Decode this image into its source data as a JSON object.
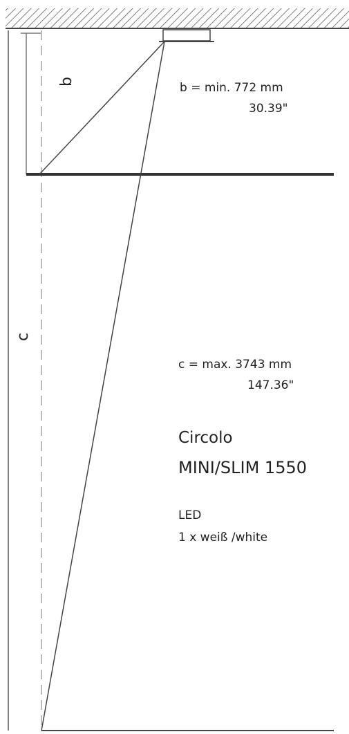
{
  "dimensions": [
    {
      "label": "b",
      "text": "b = min. 772 mm",
      "inch": "30.39\""
    },
    {
      "label": "c",
      "text": "c = max. 3743 mm",
      "inch": "147.36\""
    }
  ],
  "product": {
    "name": "Circolo",
    "model": "MINI/SLIM 1550"
  },
  "light": {
    "type": "LED",
    "color": "1 x weiß /white"
  }
}
